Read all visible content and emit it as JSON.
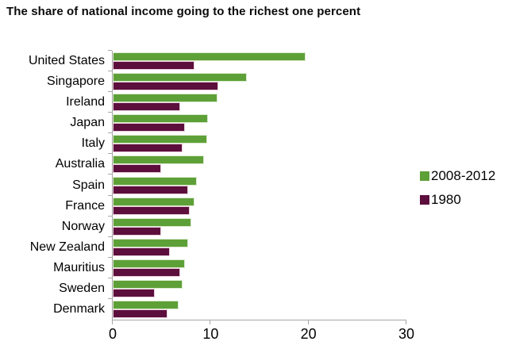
{
  "title": "The share of national income going to the richest one percent",
  "chart_data": {
    "type": "bar",
    "orientation": "horizontal",
    "title": "The share of national income going to the richest one percent",
    "categories": [
      "United States",
      "Singapore",
      "Ireland",
      "Japan",
      "Italy",
      "Australia",
      "Spain",
      "France",
      "Norway",
      "New Zealand",
      "Mauritius",
      "Sweden",
      "Denmark"
    ],
    "series": [
      {
        "name": "2008-2012",
        "color": "#5ea038",
        "border_color": "#dcebd0",
        "values": [
          19.5,
          13.5,
          10.5,
          9.6,
          9.5,
          9.2,
          8.4,
          8.2,
          7.9,
          7.5,
          7.2,
          7.0,
          6.6
        ]
      },
      {
        "name": "1980",
        "color": "#5c0e3c",
        "border_color": "#e9cfdc",
        "values": [
          8.2,
          10.6,
          6.7,
          7.2,
          7.0,
          4.8,
          7.5,
          7.7,
          4.8,
          5.7,
          6.7,
          4.1,
          5.4
        ]
      }
    ],
    "xlabel": "",
    "ylabel": "",
    "xlim": [
      0,
      30
    ],
    "x_ticks": [
      "0",
      "10",
      "20",
      "30"
    ],
    "grid": false,
    "legend_position": "right",
    "axis_color": "#a6a6a6"
  },
  "legend": {
    "items": [
      {
        "label": "2008-2012",
        "color": "#5ea038"
      },
      {
        "label": "1980",
        "color": "#5c0e3c"
      }
    ]
  }
}
